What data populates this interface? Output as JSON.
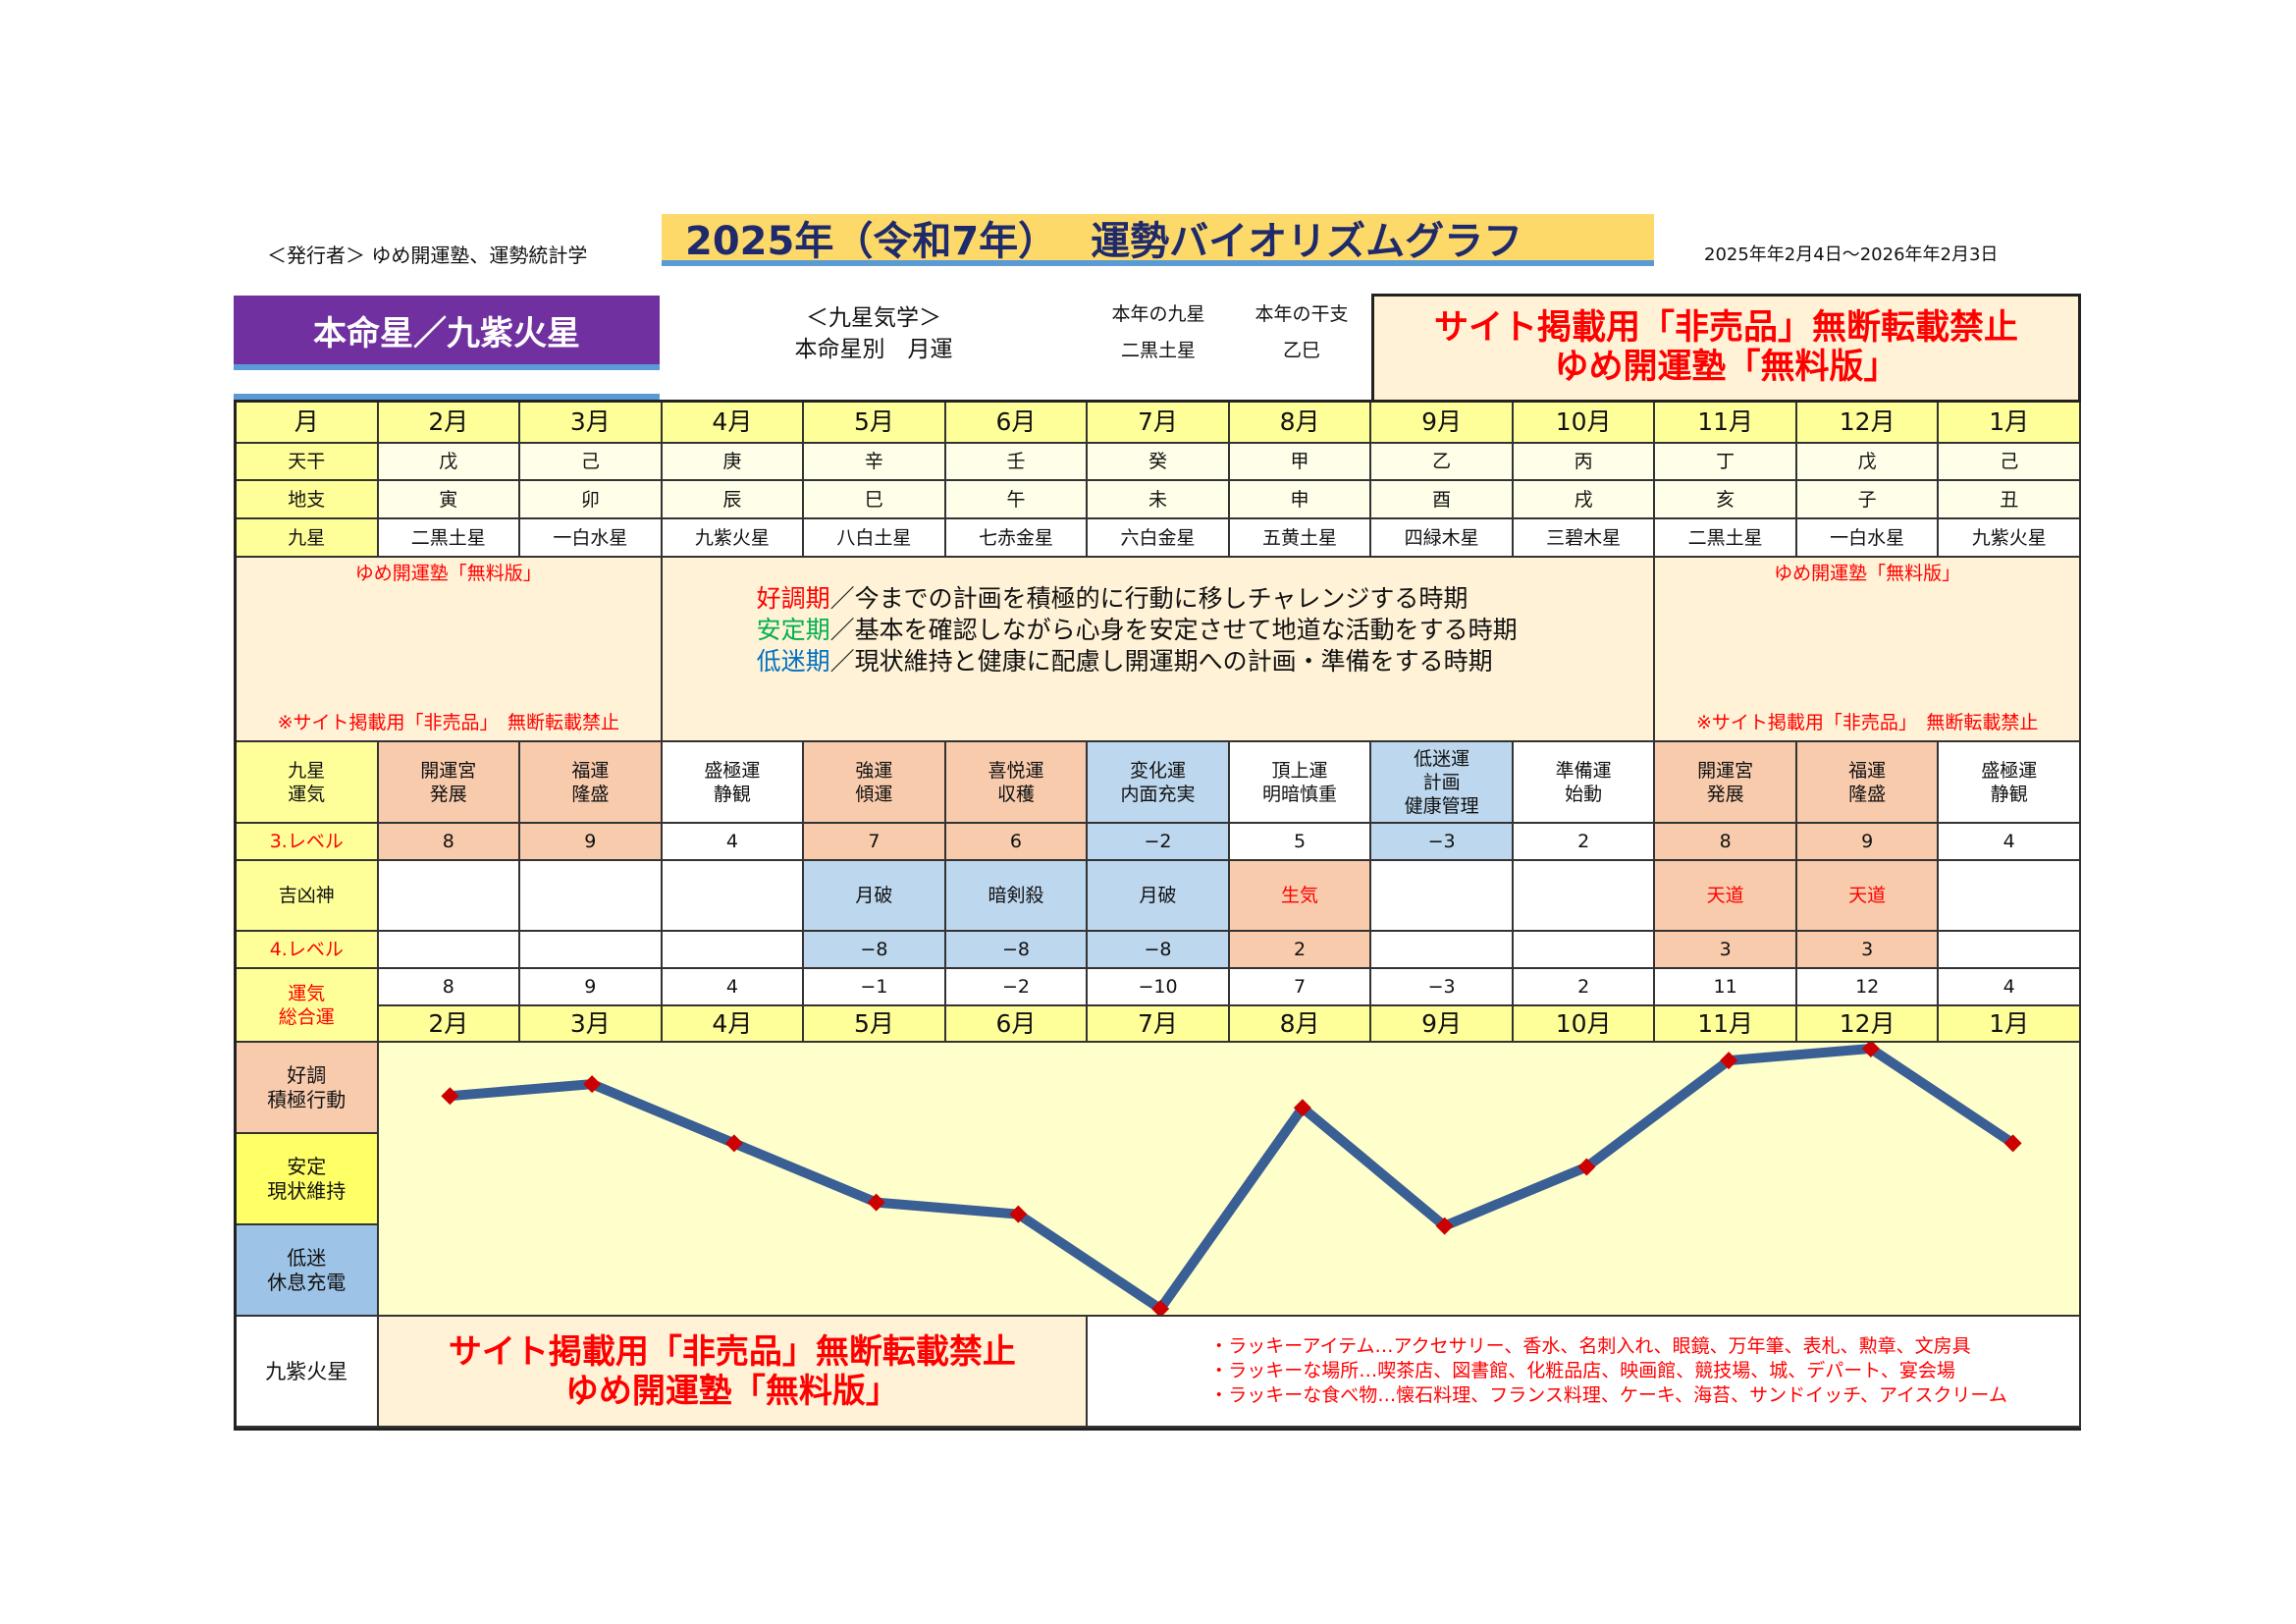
{
  "header": {
    "publisher": "＜発行者＞ ゆめ開運塾、運勢統計学",
    "title": "2025年（令和7年）　 運勢バイオリズムグラフ",
    "date_range": "2025年年2月4日～2026年年2月3日"
  },
  "top": {
    "honmeisei": "本命星／九紫火星",
    "kyusei_title": "＜九星気学＞",
    "kyusei_sub": "本命星別　月運",
    "year_star_label": "本年の九星",
    "year_star": "二黒土星",
    "year_eto_label": "本年の干支",
    "year_eto": "乙巳",
    "notice_line1": "サイト掲載用「非売品」無断転載禁止",
    "notice_line2": "ゆめ開運塾「無料版」"
  },
  "rows": {
    "month": "月",
    "tenkan": "天干",
    "chishi": "地支",
    "kyusei": "九星",
    "unki": "九星\n運気",
    "level3": "3.レベル",
    "kikkyo": "吉凶神",
    "level4": "4.レベル",
    "sogo": "運気\n総合運"
  },
  "months": [
    "2月",
    "3月",
    "4月",
    "5月",
    "6月",
    "7月",
    "8月",
    "9月",
    "10月",
    "11月",
    "12月",
    "1月"
  ],
  "tenkan": [
    "戊",
    "己",
    "庚",
    "辛",
    "壬",
    "癸",
    "甲",
    "乙",
    "丙",
    "丁",
    "戊",
    "己"
  ],
  "chishi": [
    "寅",
    "卯",
    "辰",
    "巳",
    "午",
    "未",
    "申",
    "酉",
    "戌",
    "亥",
    "子",
    "丑"
  ],
  "kyusei": [
    "二黒土星",
    "一白水星",
    "九紫火星",
    "八白土星",
    "七赤金星",
    "六白金星",
    "五黄土星",
    "四緑木星",
    "三碧木星",
    "二黒土星",
    "一白水星",
    "九紫火星"
  ],
  "info": {
    "left_top": "ゆめ開運塾「無料版」",
    "left_bottom": "※サイト掲載用「非売品」　無断転載禁止",
    "right_top": "ゆめ開運塾「無料版」",
    "right_bottom": "※サイト掲載用「非売品」　無断転載禁止",
    "lines": [
      {
        "term": "好調期",
        "text": "／今までの計画を積極的に行動に移しチャレンジする時期",
        "color": "#ff0000"
      },
      {
        "term": "安定期",
        "text": "／基本を確認しながら心身を安定させて地道な活動をする時期",
        "color": "#00b050"
      },
      {
        "term": "低迷期",
        "text": "／現状維持と健康に配慮し開運期への計画・準備をする時期",
        "color": "#0070c0"
      }
    ]
  },
  "unki": [
    "開運宮\n発展",
    "福運\n隆盛",
    "盛極運\n静観",
    "強運\n傾運",
    "喜悦運\n収穫",
    "変化運\n内面充実",
    "頂上運\n明暗慎重",
    "低迷運\n計画\n健康管理",
    "準備運\n始動",
    "開運宮\n発展",
    "福運\n隆盛",
    "盛極運\n静観"
  ],
  "unki_tone": [
    "s",
    "s",
    "w",
    "s",
    "s",
    "b",
    "w",
    "b",
    "w",
    "s",
    "s",
    "w"
  ],
  "level3": [
    "8",
    "9",
    "4",
    "7",
    "6",
    "−2",
    "5",
    "−3",
    "2",
    "8",
    "9",
    "4"
  ],
  "kikkyo": [
    "",
    "",
    "",
    "月破",
    "暗剣殺",
    "月破",
    "生気",
    "",
    "",
    "天道",
    "天道",
    ""
  ],
  "kikkyo_red": [
    false,
    false,
    false,
    false,
    false,
    false,
    true,
    false,
    false,
    true,
    true,
    false
  ],
  "kikkyo_tone": [
    "w",
    "w",
    "w",
    "b",
    "b",
    "b",
    "s",
    "w",
    "w",
    "s",
    "s",
    "w"
  ],
  "level4": [
    "",
    "",
    "",
    "−8",
    "−8",
    "−8",
    "2",
    "",
    "",
    "3",
    "3",
    ""
  ],
  "sogo": [
    "8",
    "9",
    "4",
    "−1",
    "−2",
    "−10",
    "7",
    "−3",
    "2",
    "11",
    "12",
    "4"
  ],
  "bands": [
    "好調\n積極行動",
    "安定\n現状維持",
    "低迷\n休息充電"
  ],
  "band_colors": {
    "good": "#f8cbad",
    "stable": "#ffff66",
    "low": "#9dc3e6"
  },
  "bottom": {
    "star": "九紫火星",
    "notice_line1": "サイト掲載用「非売品」無断転載禁止",
    "notice_line2": "ゆめ開運塾「無料版」",
    "lucky": [
      "・ラッキーアイテム…アクセサリー、香水、名刺入れ、眼鏡、万年筆、表札、勲章、文房具",
      "・ラッキーな場所…喫茶店、図書館、化粧品店、映画館、競技場、城、デパート、宴会場",
      "・ラッキーな食べ物…懐石料理、フランス料理、ケーキ、海苔、サンドイッチ、アイスクリーム"
    ]
  },
  "chart_data": {
    "type": "line",
    "categories": [
      "2月",
      "3月",
      "4月",
      "5月",
      "6月",
      "7月",
      "8月",
      "9月",
      "10月",
      "11月",
      "12月",
      "1月"
    ],
    "values": [
      8,
      9,
      4,
      -1,
      -2,
      -10,
      7,
      -3,
      2,
      11,
      12,
      4
    ],
    "ylim": [
      -10.5,
      12.5
    ],
    "line_color": "#3a5f94",
    "marker_color": "#cc0000",
    "marker": "diamond",
    "background": "#ffffcc"
  }
}
